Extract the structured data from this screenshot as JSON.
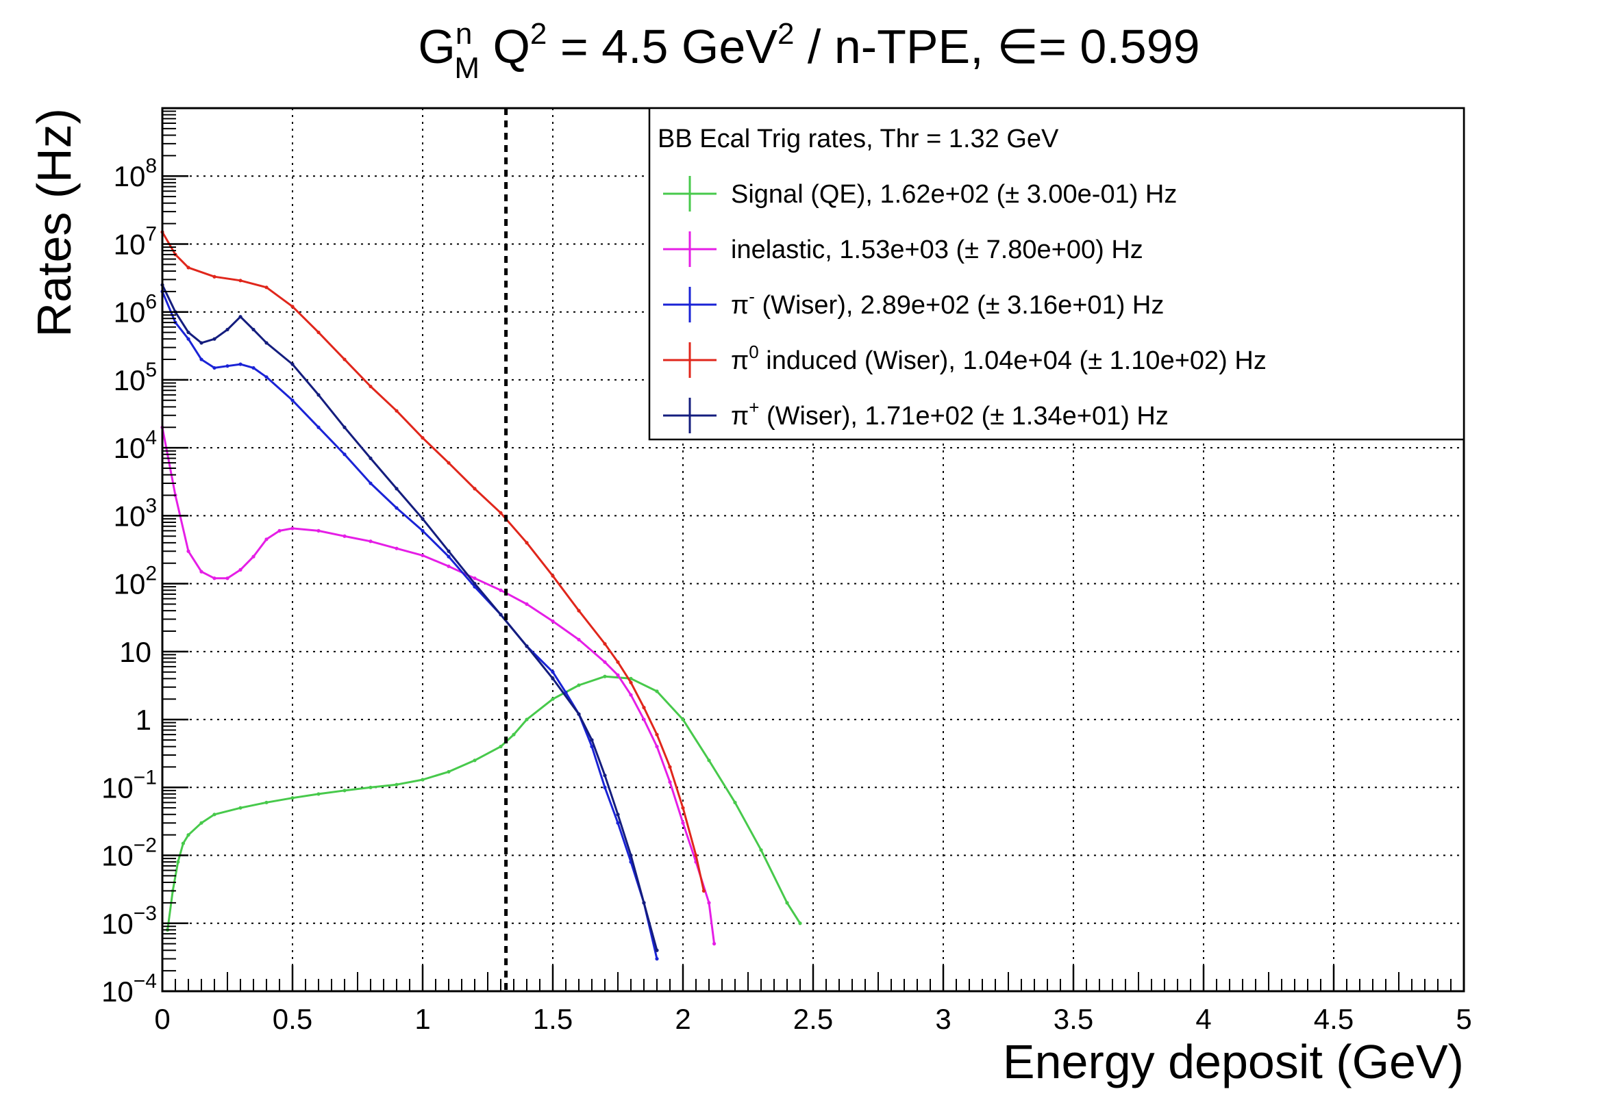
{
  "title": {
    "prefix": "G",
    "sup": "n",
    "sub": "M",
    "q": " Q",
    "q_sup": "2",
    "mid": " = 4.5 GeV",
    "mid_sup": "2",
    "suffix": " / n-TPE, ∈= 0.599"
  },
  "chart_data": {
    "type": "line",
    "x_axis": {
      "label": "Energy deposit (GeV)",
      "range": [
        0,
        5
      ],
      "ticks": [
        "0",
        "0.5",
        "1",
        "1.5",
        "2",
        "2.5",
        "3",
        "3.5",
        "4",
        "4.5",
        "5"
      ],
      "tick_values": [
        0,
        0.5,
        1,
        1.5,
        2,
        2.5,
        3,
        3.5,
        4,
        4.5,
        5
      ]
    },
    "y_axis": {
      "label": "Rates (Hz)",
      "scale": "log",
      "range": [
        0.0001,
        1000000000
      ],
      "tick_values": [
        0.0001,
        0.001,
        0.01,
        0.1,
        1,
        10,
        100,
        1000,
        10000,
        100000,
        1000000,
        10000000,
        100000000
      ],
      "tick_labels": [
        {
          "base": "10",
          "exp": "−4"
        },
        {
          "base": "10",
          "exp": "−3"
        },
        {
          "base": "10",
          "exp": "−2"
        },
        {
          "base": "10",
          "exp": "−1"
        },
        {
          "base": "1",
          "exp": ""
        },
        {
          "base": "10",
          "exp": ""
        },
        {
          "base": "10",
          "exp": "2"
        },
        {
          "base": "10",
          "exp": "3"
        },
        {
          "base": "10",
          "exp": "4"
        },
        {
          "base": "10",
          "exp": "5"
        },
        {
          "base": "10",
          "exp": "6"
        },
        {
          "base": "10",
          "exp": "7"
        },
        {
          "base": "10",
          "exp": "8"
        }
      ]
    },
    "grid": true,
    "threshold_line": {
      "x": 1.32,
      "style": "dashed",
      "color": "#000000"
    },
    "legend": {
      "placement": "top-right",
      "header": "BB Ecal Trig rates, Thr = 1.32 GeV",
      "entries": [
        {
          "sym": "",
          "sup": "",
          "text": "Signal (QE), 1.62e+02 (± 3.00e-01) Hz",
          "color": "#47c94b"
        },
        {
          "sym": "",
          "sup": "",
          "text": "inelastic, 1.53e+03 (± 7.80e+00) Hz",
          "color": "#e51ee6"
        },
        {
          "sym": "π",
          "sup": "-",
          "text": " (Wiser), 2.89e+02 (± 3.16e+01) Hz",
          "color": "#1a23d6"
        },
        {
          "sym": "π",
          "sup": "0",
          "text": " induced (Wiser), 1.04e+04 (± 1.10e+02) Hz",
          "color": "#e0261b"
        },
        {
          "sym": "π",
          "sup": "+",
          "text": " (Wiser), 1.71e+02 (± 1.34e+01) Hz",
          "color": "#141d7e"
        }
      ]
    },
    "series": [
      {
        "color": "#47c94b",
        "x": [
          0.02,
          0.04,
          0.06,
          0.08,
          0.1,
          0.15,
          0.2,
          0.3,
          0.4,
          0.5,
          0.6,
          0.7,
          0.8,
          0.9,
          1.0,
          1.1,
          1.2,
          1.3,
          1.35,
          1.4,
          1.5,
          1.6,
          1.7,
          1.8,
          1.9,
          2.0,
          2.1,
          2.2,
          2.3,
          2.4,
          2.45
        ],
        "y": [
          0.0008,
          0.003,
          0.008,
          0.015,
          0.02,
          0.03,
          0.04,
          0.05,
          0.06,
          0.07,
          0.08,
          0.09,
          0.1,
          0.11,
          0.13,
          0.17,
          0.25,
          0.4,
          0.6,
          1.0,
          2.0,
          3.2,
          4.3,
          4.0,
          2.6,
          1.0,
          0.25,
          0.06,
          0.012,
          0.002,
          0.001
        ]
      },
      {
        "color": "#e51ee6",
        "x": [
          0.0,
          0.05,
          0.1,
          0.15,
          0.2,
          0.25,
          0.3,
          0.35,
          0.4,
          0.45,
          0.5,
          0.6,
          0.7,
          0.8,
          0.9,
          1.0,
          1.1,
          1.2,
          1.3,
          1.4,
          1.5,
          1.6,
          1.7,
          1.75,
          1.8,
          1.85,
          1.9,
          1.95,
          2.0,
          2.05,
          2.1,
          2.12
        ],
        "y": [
          20000,
          2000,
          300,
          150,
          120,
          120,
          160,
          250,
          450,
          600,
          650,
          600,
          500,
          420,
          330,
          260,
          180,
          120,
          80,
          50,
          28,
          15,
          7,
          4.5,
          2.3,
          1.0,
          0.4,
          0.12,
          0.03,
          0.008,
          0.002,
          0.0005
        ]
      },
      {
        "color": "#1a23d6",
        "x": [
          0.0,
          0.05,
          0.1,
          0.15,
          0.2,
          0.25,
          0.3,
          0.35,
          0.4,
          0.5,
          0.6,
          0.7,
          0.8,
          0.9,
          1.0,
          1.1,
          1.2,
          1.3,
          1.4,
          1.5,
          1.55,
          1.6,
          1.65,
          1.7,
          1.75,
          1.8,
          1.85,
          1.9
        ],
        "y": [
          2000000,
          700000,
          400000,
          200000,
          150000,
          160000,
          170000,
          150000,
          110000,
          50000,
          20000,
          8000,
          3000,
          1300,
          600,
          250,
          90,
          35,
          12,
          5,
          2.5,
          1.2,
          0.4,
          0.1,
          0.03,
          0.008,
          0.002,
          0.0003
        ]
      },
      {
        "color": "#e0261b",
        "x": [
          0.0,
          0.05,
          0.1,
          0.2,
          0.3,
          0.4,
          0.5,
          0.6,
          0.7,
          0.8,
          0.9,
          1.0,
          1.1,
          1.2,
          1.3,
          1.4,
          1.5,
          1.6,
          1.7,
          1.75,
          1.8,
          1.85,
          1.9,
          1.95,
          2.0,
          2.05,
          2.08
        ],
        "y": [
          15000000,
          7000000,
          4500000,
          3300000,
          2900000,
          2300000,
          1200000,
          500000,
          200000,
          80000,
          35000,
          14000,
          6000,
          2500,
          1100,
          400,
          130,
          40,
          13,
          7,
          3.5,
          1.5,
          0.6,
          0.2,
          0.05,
          0.01,
          0.003
        ]
      },
      {
        "color": "#141d7e",
        "x": [
          0.0,
          0.05,
          0.1,
          0.15,
          0.2,
          0.25,
          0.3,
          0.35,
          0.4,
          0.5,
          0.6,
          0.7,
          0.8,
          0.9,
          1.0,
          1.1,
          1.2,
          1.3,
          1.4,
          1.5,
          1.6,
          1.65,
          1.7,
          1.75,
          1.8,
          1.85,
          1.9
        ],
        "y": [
          2500000,
          1000000,
          500000,
          350000,
          400000,
          550000,
          850000,
          550000,
          350000,
          170000,
          60000,
          20000,
          7000,
          2500,
          900,
          300,
          100,
          35,
          12,
          4,
          1.2,
          0.5,
          0.15,
          0.04,
          0.01,
          0.002,
          0.0004
        ]
      }
    ]
  }
}
